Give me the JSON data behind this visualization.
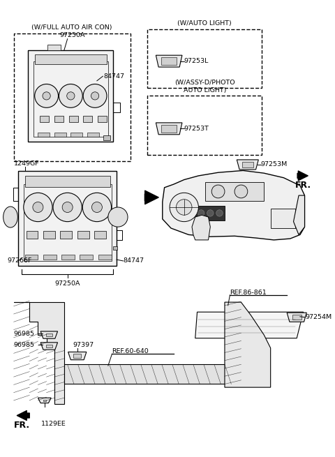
{
  "background_color": "#ffffff",
  "line_color": "#000000",
  "text_color": "#000000",
  "box1_label": "(W/FULL AUTO AIR CON)",
  "box2_label": "(W/AUTO LIGHT)",
  "box3_label": "(W/ASSY-D/PHOTO\nAUTO LIGHT)",
  "label_97250A_top": "97250A",
  "label_84747_top": "84747",
  "label_97253L": "97253L",
  "label_97253T": "97253T",
  "label_97253M": "97253M",
  "label_FR_right": "FR.",
  "label_1249GF": "1249GF",
  "label_97266F": "97266F",
  "label_84747_mid": "84747",
  "label_97250A_mid": "97250A",
  "label_REF86": "REF.86-861",
  "label_97254M": "97254M",
  "label_REF60": "REF.60-640",
  "label_97397": "97397",
  "label_96985_1": "96985",
  "label_96985_2": "96985",
  "label_FR_bot": "FR.",
  "label_1129EE": "1129EE"
}
